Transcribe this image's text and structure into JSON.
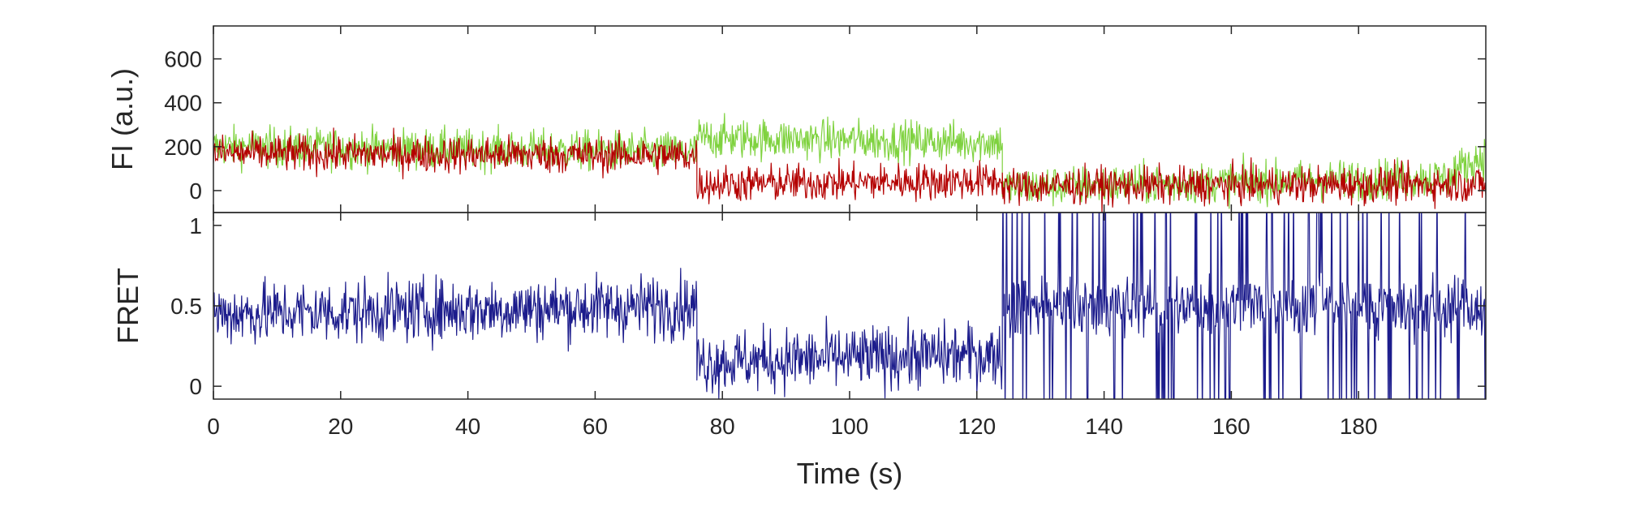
{
  "chart_data": [
    {
      "type": "line",
      "ylabel": "FI (a.u.)",
      "xlim": [
        0,
        200
      ],
      "ylim": [
        -100,
        750
      ],
      "yticks": [
        0,
        200,
        400,
        600
      ],
      "xticks_labeled": false,
      "grid": false,
      "series": [
        {
          "color": "#7fd23f",
          "noise": 65,
          "segments": [
            {
              "x": [
                0,
                76
              ],
              "y": [
                200,
                175
              ]
            },
            {
              "x": [
                76,
                124
              ],
              "y": [
                240,
                220
              ]
            },
            {
              "x": [
                124,
                195
              ],
              "y": [
                15,
                60
              ]
            },
            {
              "x": [
                195,
                200
              ],
              "y": [
                90,
                160
              ]
            }
          ]
        },
        {
          "color": "#b40000",
          "noise": 60,
          "segments": [
            {
              "x": [
                0,
                76
              ],
              "y": [
                170,
                160
              ]
            },
            {
              "x": [
                76,
                124
              ],
              "y": [
                30,
                45
              ]
            },
            {
              "x": [
                124,
                200
              ],
              "y": [
                20,
                30
              ]
            }
          ]
        }
      ]
    },
    {
      "type": "line",
      "ylabel": "FRET",
      "xlabel": "Time (s)",
      "xlim": [
        0,
        200
      ],
      "ylim": [
        -0.08,
        1.08
      ],
      "xticks": [
        0,
        20,
        40,
        60,
        80,
        100,
        120,
        140,
        160,
        180
      ],
      "yticks": [
        0,
        0.5,
        1
      ],
      "ytick_labels": [
        "0",
        "0.5",
        "1"
      ],
      "grid": false,
      "series": [
        {
          "color": "#1c1c8c",
          "noise": 0.14,
          "segments": [
            {
              "x": [
                0,
                76
              ],
              "y": [
                0.45,
                0.5
              ]
            },
            {
              "x": [
                76,
                124
              ],
              "y": [
                0.15,
                0.2
              ]
            },
            {
              "x": [
                124,
                200
              ],
              "y": [
                0.5,
                0.5
              ]
            }
          ]
        }
      ]
    }
  ]
}
